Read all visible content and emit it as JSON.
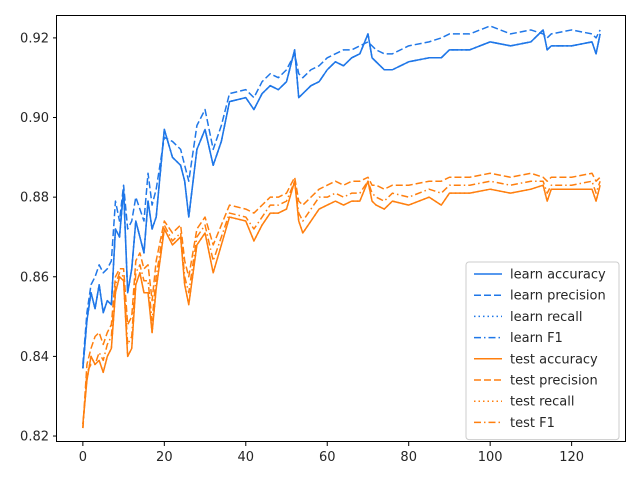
{
  "chart_data": {
    "type": "line",
    "title": "",
    "xlabel": "",
    "ylabel": "",
    "xlim": [
      -6.35,
      133.35
    ],
    "ylim": [
      0.8185,
      0.9255
    ],
    "grid": false,
    "legend_position": "lower-right",
    "x_ticks": [
      0,
      20,
      40,
      60,
      80,
      100,
      120
    ],
    "x_tick_labels": [
      "0",
      "20",
      "40",
      "60",
      "80",
      "100",
      "120"
    ],
    "y_ticks": [
      0.82,
      0.84,
      0.86,
      0.88,
      0.9,
      0.92
    ],
    "y_tick_labels": [
      "0.82",
      "0.84",
      "0.86",
      "0.88",
      "0.90",
      "0.92"
    ],
    "colors": {
      "learn": "#1f77e8",
      "test": "#ff7f0e"
    },
    "anchor_x": [
      0,
      1,
      2,
      3,
      4,
      5,
      6,
      7,
      8,
      9,
      10,
      11,
      12,
      13,
      14,
      15,
      16,
      17,
      18,
      20,
      22,
      24,
      25,
      26,
      28,
      30,
      32,
      34,
      36,
      40,
      42,
      44,
      46,
      48,
      50,
      52,
      53,
      54,
      56,
      58,
      60,
      62,
      64,
      66,
      68,
      70,
      71,
      72,
      74,
      76,
      80,
      85,
      88,
      90,
      95,
      100,
      105,
      110,
      113,
      114,
      115,
      120,
      125,
      126,
      127
    ],
    "series": [
      {
        "name": "learn accuracy",
        "group": "learn",
        "style": "solid",
        "values": [
          0.837,
          0.849,
          0.856,
          0.852,
          0.858,
          0.851,
          0.854,
          0.853,
          0.872,
          0.87,
          0.882,
          0.856,
          0.862,
          0.874,
          0.87,
          0.866,
          0.879,
          0.872,
          0.875,
          0.897,
          0.89,
          0.888,
          0.884,
          0.875,
          0.892,
          0.897,
          0.888,
          0.894,
          0.904,
          0.905,
          0.902,
          0.906,
          0.908,
          0.907,
          0.909,
          0.917,
          0.905,
          0.906,
          0.908,
          0.909,
          0.912,
          0.914,
          0.913,
          0.915,
          0.916,
          0.921,
          0.915,
          0.914,
          0.912,
          0.912,
          0.914,
          0.915,
          0.915,
          0.917,
          0.917,
          0.919,
          0.918,
          0.919,
          0.922,
          0.917,
          0.918,
          0.918,
          0.919,
          0.916,
          0.921
        ]
      },
      {
        "name": "learn precision",
        "group": "learn",
        "style": "dashed",
        "values": [
          0.838,
          0.851,
          0.858,
          0.86,
          0.863,
          0.861,
          0.862,
          0.864,
          0.879,
          0.874,
          0.883,
          0.872,
          0.874,
          0.88,
          0.877,
          0.874,
          0.886,
          0.878,
          0.882,
          0.895,
          0.894,
          0.892,
          0.888,
          0.884,
          0.898,
          0.902,
          0.892,
          0.898,
          0.906,
          0.907,
          0.905,
          0.909,
          0.911,
          0.91,
          0.912,
          0.916,
          0.911,
          0.91,
          0.912,
          0.913,
          0.915,
          0.916,
          0.917,
          0.917,
          0.918,
          0.919,
          0.918,
          0.917,
          0.916,
          0.916,
          0.918,
          0.919,
          0.92,
          0.921,
          0.921,
          0.923,
          0.921,
          0.922,
          0.921,
          0.92,
          0.921,
          0.922,
          0.921,
          0.92,
          0.922
        ]
      },
      {
        "name": "learn recall",
        "group": "learn",
        "style": "dotted",
        "values": [
          0.837,
          0.849,
          0.856,
          0.852,
          0.858,
          0.851,
          0.854,
          0.853,
          0.872,
          0.87,
          0.882,
          0.856,
          0.862,
          0.874,
          0.87,
          0.866,
          0.879,
          0.872,
          0.875,
          0.897,
          0.89,
          0.888,
          0.884,
          0.875,
          0.892,
          0.897,
          0.888,
          0.894,
          0.904,
          0.905,
          0.902,
          0.906,
          0.908,
          0.907,
          0.909,
          0.917,
          0.905,
          0.906,
          0.908,
          0.909,
          0.912,
          0.914,
          0.913,
          0.915,
          0.916,
          0.921,
          0.915,
          0.914,
          0.912,
          0.912,
          0.914,
          0.915,
          0.915,
          0.917,
          0.917,
          0.919,
          0.918,
          0.919,
          0.922,
          0.917,
          0.918,
          0.918,
          0.919,
          0.916,
          0.921
        ]
      },
      {
        "name": "learn F1",
        "group": "learn",
        "style": "dashdot",
        "values": [
          0.837,
          0.849,
          0.856,
          0.852,
          0.858,
          0.851,
          0.854,
          0.853,
          0.872,
          0.87,
          0.882,
          0.856,
          0.862,
          0.874,
          0.87,
          0.866,
          0.879,
          0.872,
          0.875,
          0.897,
          0.89,
          0.888,
          0.884,
          0.875,
          0.892,
          0.897,
          0.888,
          0.894,
          0.904,
          0.905,
          0.902,
          0.906,
          0.908,
          0.907,
          0.909,
          0.917,
          0.905,
          0.906,
          0.908,
          0.909,
          0.912,
          0.914,
          0.913,
          0.915,
          0.916,
          0.921,
          0.915,
          0.914,
          0.912,
          0.912,
          0.914,
          0.915,
          0.915,
          0.917,
          0.917,
          0.919,
          0.918,
          0.919,
          0.922,
          0.917,
          0.918,
          0.918,
          0.919,
          0.916,
          0.921
        ]
      },
      {
        "name": "test accuracy",
        "group": "test",
        "style": "solid",
        "values": [
          0.823,
          0.834,
          0.84,
          0.838,
          0.839,
          0.836,
          0.84,
          0.842,
          0.856,
          0.86,
          0.859,
          0.84,
          0.842,
          0.858,
          0.861,
          0.856,
          0.856,
          0.846,
          0.857,
          0.872,
          0.868,
          0.87,
          0.858,
          0.853,
          0.868,
          0.871,
          0.861,
          0.868,
          0.875,
          0.874,
          0.869,
          0.873,
          0.876,
          0.876,
          0.877,
          0.884,
          0.874,
          0.871,
          0.874,
          0.877,
          0.878,
          0.879,
          0.878,
          0.879,
          0.879,
          0.884,
          0.879,
          0.878,
          0.877,
          0.879,
          0.878,
          0.88,
          0.878,
          0.881,
          0.881,
          0.882,
          0.881,
          0.882,
          0.883,
          0.879,
          0.882,
          0.882,
          0.882,
          0.879,
          0.883
        ]
      },
      {
        "name": "test precision",
        "group": "test",
        "style": "dashed",
        "values": [
          0.822,
          0.838,
          0.842,
          0.845,
          0.846,
          0.843,
          0.846,
          0.848,
          0.86,
          0.862,
          0.862,
          0.848,
          0.85,
          0.864,
          0.866,
          0.862,
          0.863,
          0.854,
          0.864,
          0.874,
          0.871,
          0.873,
          0.864,
          0.86,
          0.872,
          0.875,
          0.868,
          0.873,
          0.878,
          0.877,
          0.876,
          0.878,
          0.88,
          0.88,
          0.881,
          0.885,
          0.879,
          0.878,
          0.88,
          0.882,
          0.883,
          0.884,
          0.883,
          0.884,
          0.884,
          0.885,
          0.883,
          0.883,
          0.882,
          0.883,
          0.883,
          0.884,
          0.884,
          0.885,
          0.885,
          0.886,
          0.885,
          0.886,
          0.885,
          0.884,
          0.885,
          0.885,
          0.886,
          0.884,
          0.885
        ]
      },
      {
        "name": "test recall",
        "group": "test",
        "style": "dotted",
        "values": [
          0.823,
          0.834,
          0.84,
          0.838,
          0.839,
          0.836,
          0.84,
          0.842,
          0.856,
          0.86,
          0.859,
          0.84,
          0.842,
          0.858,
          0.861,
          0.856,
          0.856,
          0.846,
          0.857,
          0.872,
          0.868,
          0.87,
          0.858,
          0.853,
          0.868,
          0.871,
          0.861,
          0.868,
          0.875,
          0.874,
          0.869,
          0.873,
          0.876,
          0.876,
          0.877,
          0.884,
          0.874,
          0.871,
          0.874,
          0.877,
          0.878,
          0.879,
          0.878,
          0.879,
          0.879,
          0.884,
          0.879,
          0.878,
          0.877,
          0.879,
          0.878,
          0.88,
          0.878,
          0.881,
          0.881,
          0.882,
          0.881,
          0.882,
          0.883,
          0.879,
          0.882,
          0.882,
          0.882,
          0.879,
          0.883
        ]
      },
      {
        "name": "test F1",
        "group": "test",
        "style": "dashdot",
        "values": [
          0.822,
          0.836,
          0.838,
          0.838,
          0.841,
          0.839,
          0.843,
          0.845,
          0.858,
          0.861,
          0.86,
          0.843,
          0.845,
          0.861,
          0.863,
          0.859,
          0.859,
          0.849,
          0.86,
          0.873,
          0.869,
          0.871,
          0.86,
          0.856,
          0.87,
          0.873,
          0.864,
          0.87,
          0.876,
          0.875,
          0.872,
          0.875,
          0.878,
          0.878,
          0.879,
          0.884,
          0.876,
          0.874,
          0.877,
          0.88,
          0.88,
          0.881,
          0.88,
          0.881,
          0.881,
          0.884,
          0.881,
          0.88,
          0.879,
          0.881,
          0.88,
          0.882,
          0.881,
          0.883,
          0.883,
          0.884,
          0.883,
          0.884,
          0.884,
          0.881,
          0.883,
          0.883,
          0.884,
          0.881,
          0.884
        ]
      }
    ]
  }
}
